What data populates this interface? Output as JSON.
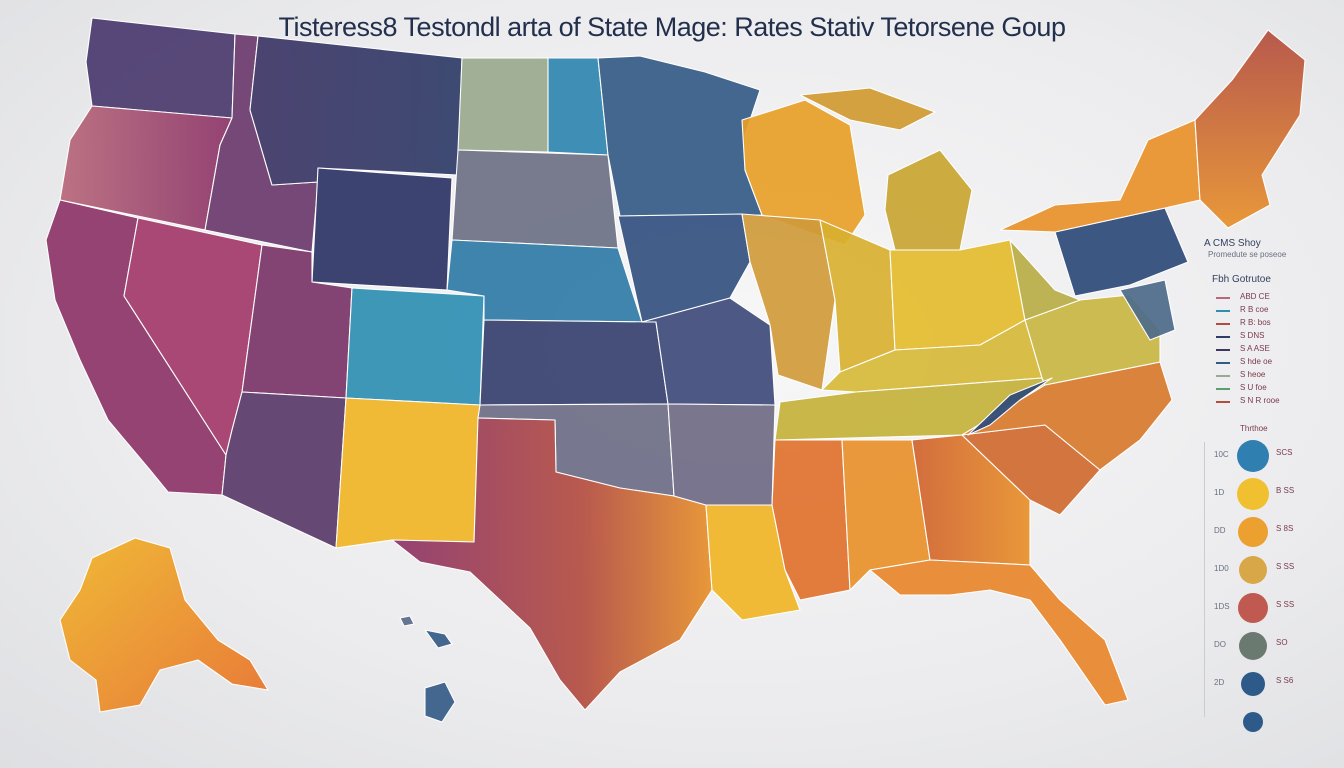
{
  "title": "Tisteress8 Testondl arta of State Mage: Rates Stativ Tetorsene Goup",
  "colors": {
    "deep_purple": "#3e3566",
    "magenta": "#8c3468",
    "rose": "#b8687a",
    "navy": "#2e3c68",
    "steel_blue": "#345b86",
    "teal": "#2f8fb2",
    "sage": "#9aa98f",
    "slate": "#6c7184",
    "gold": "#f0b527",
    "mustard": "#cfae2e",
    "orange": "#e8902a",
    "burnt_orange": "#d0622e",
    "red_brown": "#b44d40",
    "maroon": "#8c3a4c"
  },
  "legend": {
    "title": "A CMS Shoy",
    "subtitle": "Promedute se poseoe",
    "subtitle2": "Fbh Gotrutoe",
    "entries": [
      {
        "label": "ABD CE",
        "color": "#b8687a"
      },
      {
        "label": "R B coe",
        "color": "#2f8fb2"
      },
      {
        "label": "R B: bos",
        "color": "#b44d40"
      },
      {
        "label": "S DNS",
        "color": "#2e3c68"
      },
      {
        "label": "S A ASE",
        "color": "#3e3566"
      },
      {
        "label": "S hde oe",
        "color": "#345b86"
      },
      {
        "label": "S heoe",
        "color": "#9aa98f"
      },
      {
        "label": "S U foe",
        "color": "#5aa06a"
      },
      {
        "label": "S N R rooe",
        "color": "#b44d40"
      }
    ],
    "circle_header": "Thrthoe",
    "circles": [
      {
        "color": "#2f7fb0",
        "left_label": "10C",
        "right_label": "SCS"
      },
      {
        "color": "#f0c030",
        "left_label": "1D",
        "right_label": "B SS"
      },
      {
        "color": "#eba030",
        "left_label": "DD",
        "right_label": "S 8S"
      },
      {
        "color": "#d8a848",
        "left_label": "1D0",
        "right_label": "S SS"
      },
      {
        "color": "#c05a50",
        "left_label": "1DS",
        "right_label": "S SS"
      },
      {
        "color": "#6a7a70",
        "left_label": "DO",
        "right_label": "SO"
      },
      {
        "color": "#2e5a8a",
        "left_label": "2D",
        "right_label": "S S6"
      },
      {
        "color": "#2e5a8a",
        "left_label": "",
        "right_label": ""
      }
    ]
  }
}
